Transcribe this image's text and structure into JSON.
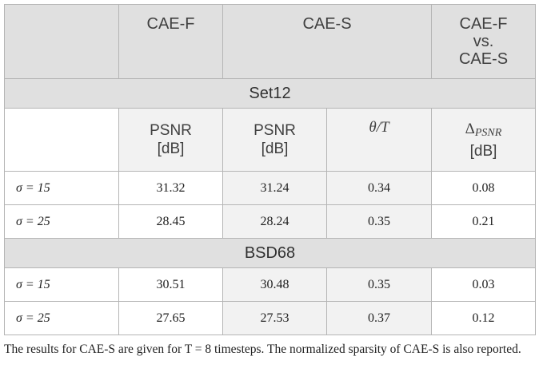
{
  "header": {
    "col_f": "CAE-F",
    "col_s": "CAE-S",
    "col_vs_line1": "CAE-F",
    "col_vs_line2": "vs.",
    "col_vs_line3": "CAE-S"
  },
  "sections": [
    {
      "title": "Set12",
      "rows": [
        {
          "sigma": "σ = 15",
          "psnr_f": "31.32",
          "psnr_s": "31.24",
          "theta": "0.34",
          "delta": "0.08"
        },
        {
          "sigma": "σ = 25",
          "psnr_f": "28.45",
          "psnr_s": "28.24",
          "theta": "0.35",
          "delta": "0.21"
        }
      ]
    },
    {
      "title": "BSD68",
      "rows": [
        {
          "sigma": "σ = 15",
          "psnr_f": "30.51",
          "psnr_s": "30.48",
          "theta": "0.35",
          "delta": "0.03"
        },
        {
          "sigma": "σ = 25",
          "psnr_f": "27.65",
          "psnr_s": "27.53",
          "theta": "0.37",
          "delta": "0.12"
        }
      ]
    }
  ],
  "subheader": {
    "psnr_line1": "PSNR",
    "psnr_line2": "[dB]",
    "theta": "θ/T",
    "delta_symbol": "Δ",
    "delta_sub": "PSNR",
    "delta_unit": "[dB]"
  },
  "footnote": "The results for CAE-S are given for T = 8 timesteps. The normalized sparsity of CAE-S is also reported."
}
